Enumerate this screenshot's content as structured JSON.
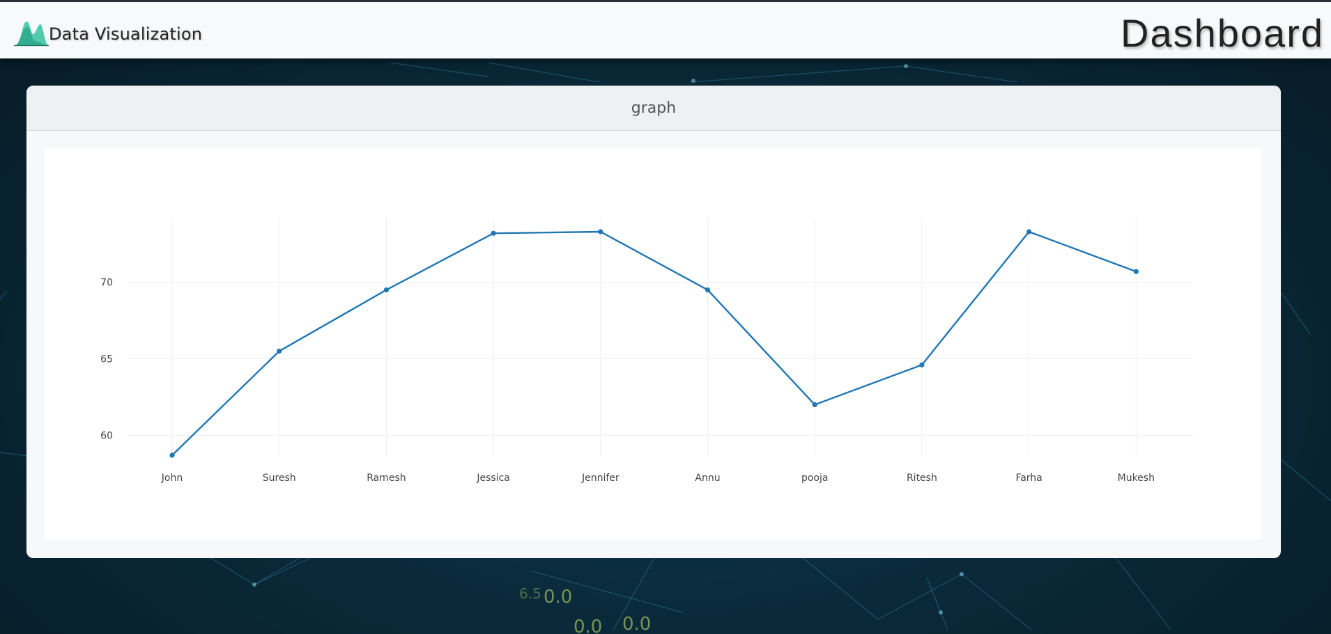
{
  "brand": {
    "name": "Data Visualization",
    "icon": "bell-curve-logo-icon"
  },
  "header": {
    "title": "Dashboard"
  },
  "card": {
    "title": "graph"
  },
  "colors": {
    "line": "#1f77b4",
    "grid": "#eeeeee",
    "tick_text": "#444444",
    "brand_icon": "#3fc7a6"
  },
  "chart_data": {
    "type": "line",
    "categories": [
      "John",
      "Suresh",
      "Ramesh",
      "Jessica",
      "Jennifer",
      "Annu",
      "pooja",
      "Ritesh",
      "Farha",
      "Mukesh"
    ],
    "values": [
      58.7,
      65.5,
      69.5,
      73.2,
      73.3,
      69.5,
      62.0,
      64.6,
      73.3,
      70.7
    ],
    "yticks": [
      60,
      65,
      70
    ],
    "ylim": [
      58.7,
      73.3
    ],
    "title": "",
    "xlabel": "",
    "ylabel": "",
    "grid": true
  }
}
